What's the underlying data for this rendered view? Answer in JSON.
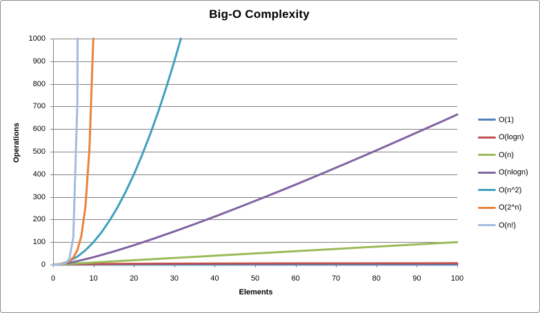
{
  "window": {
    "background": "#FFFFFF",
    "border_color": "#8C8C8C"
  },
  "chart_data": {
    "type": "line",
    "title": "Big-O Complexity",
    "xlabel": "Elements",
    "ylabel": "Operations",
    "xlim": [
      0,
      100
    ],
    "ylim": [
      0,
      1000
    ],
    "x_ticks": [
      0,
      10,
      20,
      30,
      40,
      50,
      60,
      70,
      80,
      90,
      100
    ],
    "y_ticks": [
      0,
      100,
      200,
      300,
      400,
      500,
      600,
      700,
      800,
      900,
      1000
    ],
    "grid": "horizontal",
    "legend_position": "right",
    "gridline_color": "#808080",
    "axis_color": "#808080",
    "text_color": "#000000",
    "series": [
      {
        "name": "O(1)",
        "color": "#4F81BD",
        "points": [
          [
            0,
            1
          ],
          [
            100,
            1
          ]
        ]
      },
      {
        "name": "O(logn)",
        "color": "#C0504D",
        "points": [
          [
            1,
            0
          ],
          [
            2,
            1
          ],
          [
            4,
            2
          ],
          [
            8,
            3
          ],
          [
            16,
            4
          ],
          [
            32,
            5
          ],
          [
            64,
            6
          ],
          [
            100,
            6.6
          ]
        ]
      },
      {
        "name": "O(n)",
        "color": "#9BBB59",
        "points": [
          [
            0,
            0
          ],
          [
            100,
            100
          ]
        ]
      },
      {
        "name": "O(nlogn)",
        "color": "#8064A2",
        "points": [
          [
            1,
            0
          ],
          [
            5,
            11.6
          ],
          [
            10,
            33.2
          ],
          [
            15,
            58.6
          ],
          [
            20,
            86.4
          ],
          [
            25,
            116.1
          ],
          [
            30,
            147.2
          ],
          [
            35,
            179.5
          ],
          [
            40,
            212.9
          ],
          [
            45,
            247.2
          ],
          [
            50,
            282.2
          ],
          [
            55,
            318.0
          ],
          [
            60,
            354.4
          ],
          [
            65,
            391.5
          ],
          [
            70,
            429.0
          ],
          [
            75,
            467.1
          ],
          [
            80,
            505.8
          ],
          [
            85,
            544.9
          ],
          [
            90,
            584.3
          ],
          [
            95,
            624.1
          ],
          [
            100,
            664.4
          ]
        ]
      },
      {
        "name": "O(n^2)",
        "color": "#3FA0BC",
        "points": [
          [
            0,
            0
          ],
          [
            2,
            4
          ],
          [
            4,
            16
          ],
          [
            6,
            36
          ],
          [
            8,
            64
          ],
          [
            10,
            100
          ],
          [
            12,
            144
          ],
          [
            14,
            196
          ],
          [
            16,
            256
          ],
          [
            18,
            324
          ],
          [
            20,
            400
          ],
          [
            22,
            484
          ],
          [
            24,
            576
          ],
          [
            26,
            676
          ],
          [
            28,
            784
          ],
          [
            30,
            900
          ],
          [
            32,
            1024
          ]
        ]
      },
      {
        "name": "O(2^n)",
        "color": "#E8833C",
        "points": [
          [
            0,
            1
          ],
          [
            1,
            2
          ],
          [
            2,
            4
          ],
          [
            3,
            8
          ],
          [
            4,
            16
          ],
          [
            5,
            32
          ],
          [
            6,
            64
          ],
          [
            7,
            128
          ],
          [
            8,
            256
          ],
          [
            9,
            512
          ],
          [
            10,
            1024
          ]
        ]
      },
      {
        "name": "O(n!)",
        "color": "#A4BCDC",
        "points": [
          [
            0,
            1
          ],
          [
            1,
            1
          ],
          [
            2,
            2
          ],
          [
            3,
            6
          ],
          [
            4,
            24
          ],
          [
            5,
            120
          ],
          [
            6,
            720
          ],
          [
            7,
            5040
          ]
        ]
      }
    ]
  }
}
